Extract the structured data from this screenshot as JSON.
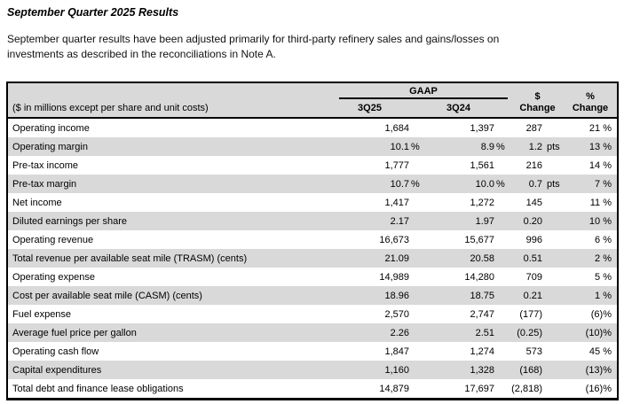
{
  "doc": {
    "title": "September Quarter 2025 Results",
    "intro_lines": [
      "September quarter results have been adjusted primarily for third-party refinery sales and gains/losses on",
      "investments as described in the reconciliations in Note A."
    ]
  },
  "table": {
    "group_header": "GAAP",
    "unit_note": "($ in millions except per share and unit costs)",
    "columns": {
      "q25": "3Q25",
      "q24": "3Q24",
      "dollar_change": [
        "$",
        "Change"
      ],
      "pct_change": [
        "%",
        "Change"
      ]
    },
    "rows": [
      {
        "label": "Operating income",
        "q25": "1,684",
        "q25_unit": "",
        "q24": "1,397",
        "q24_unit": "",
        "chg": "287",
        "chg_unit": "",
        "pct": "21 %"
      },
      {
        "label": "Operating margin",
        "q25": "10.1",
        "q25_unit": "%",
        "q24": "8.9",
        "q24_unit": "%",
        "chg": "1.2",
        "chg_unit": "pts",
        "pct": "13 %"
      },
      {
        "label": "Pre-tax income",
        "q25": "1,777",
        "q25_unit": "",
        "q24": "1,561",
        "q24_unit": "",
        "chg": "216",
        "chg_unit": "",
        "pct": "14 %"
      },
      {
        "label": "Pre-tax margin",
        "q25": "10.7",
        "q25_unit": "%",
        "q24": "10.0",
        "q24_unit": "%",
        "chg": "0.7",
        "chg_unit": "pts",
        "pct": "7 %"
      },
      {
        "label": "Net income",
        "q25": "1,417",
        "q25_unit": "",
        "q24": "1,272",
        "q24_unit": "",
        "chg": "145",
        "chg_unit": "",
        "pct": "11 %"
      },
      {
        "label": "Diluted earnings per share",
        "q25": "2.17",
        "q25_unit": "",
        "q24": "1.97",
        "q24_unit": "",
        "chg": "0.20",
        "chg_unit": "",
        "pct": "10 %"
      },
      {
        "label": "Operating revenue",
        "q25": "16,673",
        "q25_unit": "",
        "q24": "15,677",
        "q24_unit": "",
        "chg": "996",
        "chg_unit": "",
        "pct": "6 %"
      },
      {
        "label": "Total revenue per available seat mile (TRASM) (cents)",
        "q25": "21.09",
        "q25_unit": "",
        "q24": "20.58",
        "q24_unit": "",
        "chg": "0.51",
        "chg_unit": "",
        "pct": "2 %"
      },
      {
        "label": "Operating expense",
        "q25": "14,989",
        "q25_unit": "",
        "q24": "14,280",
        "q24_unit": "",
        "chg": "709",
        "chg_unit": "",
        "pct": "5 %"
      },
      {
        "label": "Cost per available seat mile (CASM) (cents)",
        "q25": "18.96",
        "q25_unit": "",
        "q24": "18.75",
        "q24_unit": "",
        "chg": "0.21",
        "chg_unit": "",
        "pct": "1 %"
      },
      {
        "label": "Fuel expense",
        "q25": "2,570",
        "q25_unit": "",
        "q24": "2,747",
        "q24_unit": "",
        "chg": "(177)",
        "chg_unit": "",
        "pct": "(6)%"
      },
      {
        "label": "Average fuel price per gallon",
        "q25": "2.26",
        "q25_unit": "",
        "q24": "2.51",
        "q24_unit": "",
        "chg": "(0.25)",
        "chg_unit": "",
        "pct": "(10)%"
      },
      {
        "label": "Operating cash flow",
        "q25": "1,847",
        "q25_unit": "",
        "q24": "1,274",
        "q24_unit": "",
        "chg": "573",
        "chg_unit": "",
        "pct": "45 %"
      },
      {
        "label": "Capital expenditures",
        "q25": "1,160",
        "q25_unit": "",
        "q24": "1,328",
        "q24_unit": "",
        "chg": "(168)",
        "chg_unit": "",
        "pct": "(13)%"
      },
      {
        "label": "Total debt and finance lease obligations",
        "q25": "14,879",
        "q25_unit": "",
        "q24": "17,697",
        "q24_unit": "",
        "chg": "(2,818)",
        "chg_unit": "",
        "pct": "(16)%"
      }
    ]
  },
  "colors": {
    "header_bg": "#d9d9d9",
    "alt_row_bg": "#d9d9d9",
    "border": "#000000",
    "text": "#000000"
  }
}
